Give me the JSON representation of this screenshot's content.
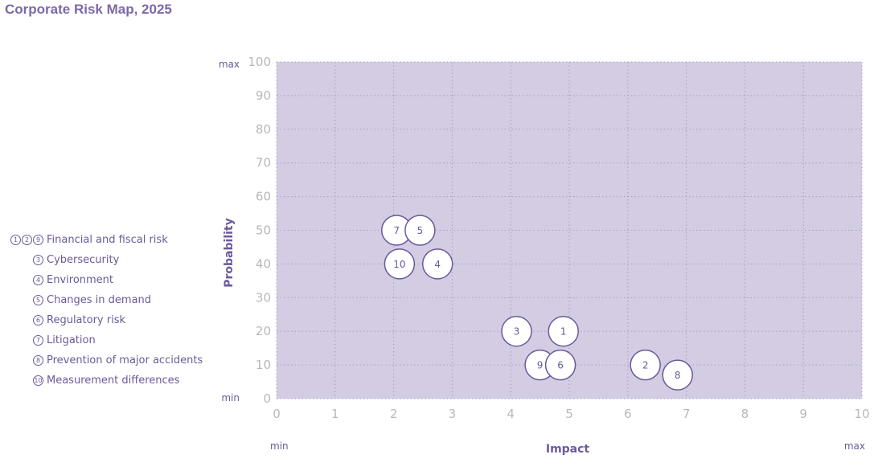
{
  "title": "Corporate Risk Map, 2025",
  "legend": [
    {
      "markers": [
        "1",
        "2",
        "9"
      ],
      "label": "Financial and fiscal risk"
    },
    {
      "markers": [
        "3"
      ],
      "label": "Cybersecurity"
    },
    {
      "markers": [
        "4"
      ],
      "label": "Environment"
    },
    {
      "markers": [
        "5"
      ],
      "label": "Changes in demand"
    },
    {
      "markers": [
        "6"
      ],
      "label": "Regulatory risk"
    },
    {
      "markers": [
        "7"
      ],
      "label": "Litigation"
    },
    {
      "markers": [
        "8"
      ],
      "label": "Prevention of major accidents"
    },
    {
      "markers": [
        "10"
      ],
      "label": "Measurement differences"
    }
  ],
  "colors": {
    "plot_background": "#d3cce3",
    "marker_stroke": "#6a5a9a",
    "marker_fill": "#ffffff",
    "label_text": "#6a5a9a",
    "tick_text": "#b8b8b8",
    "grid": "#a99fc6"
  },
  "chart_data": {
    "type": "scatter",
    "title": "Corporate Risk Map, 2025",
    "xlabel": "Impact",
    "ylabel": "Probability",
    "xlim": [
      0,
      10
    ],
    "ylim": [
      0,
      100
    ],
    "x_ticks": [
      0,
      1,
      2,
      3,
      4,
      5,
      6,
      7,
      8,
      9,
      10
    ],
    "y_ticks": [
      0,
      10,
      20,
      30,
      40,
      50,
      60,
      70,
      80,
      90,
      100
    ],
    "x_end_labels": {
      "min": "min",
      "max": "max"
    },
    "y_end_labels": {
      "min": "min",
      "max": "max"
    },
    "grid": true,
    "legend_position": "left",
    "points": [
      {
        "label": "7",
        "x": 2.05,
        "y": 50
      },
      {
        "label": "5",
        "x": 2.45,
        "y": 50
      },
      {
        "label": "10",
        "x": 2.1,
        "y": 40
      },
      {
        "label": "4",
        "x": 2.75,
        "y": 40
      },
      {
        "label": "3",
        "x": 4.1,
        "y": 20
      },
      {
        "label": "1",
        "x": 4.9,
        "y": 20
      },
      {
        "label": "9",
        "x": 4.5,
        "y": 10
      },
      {
        "label": "6",
        "x": 4.85,
        "y": 10
      },
      {
        "label": "2",
        "x": 6.3,
        "y": 10
      },
      {
        "label": "8",
        "x": 6.85,
        "y": 7
      }
    ]
  }
}
